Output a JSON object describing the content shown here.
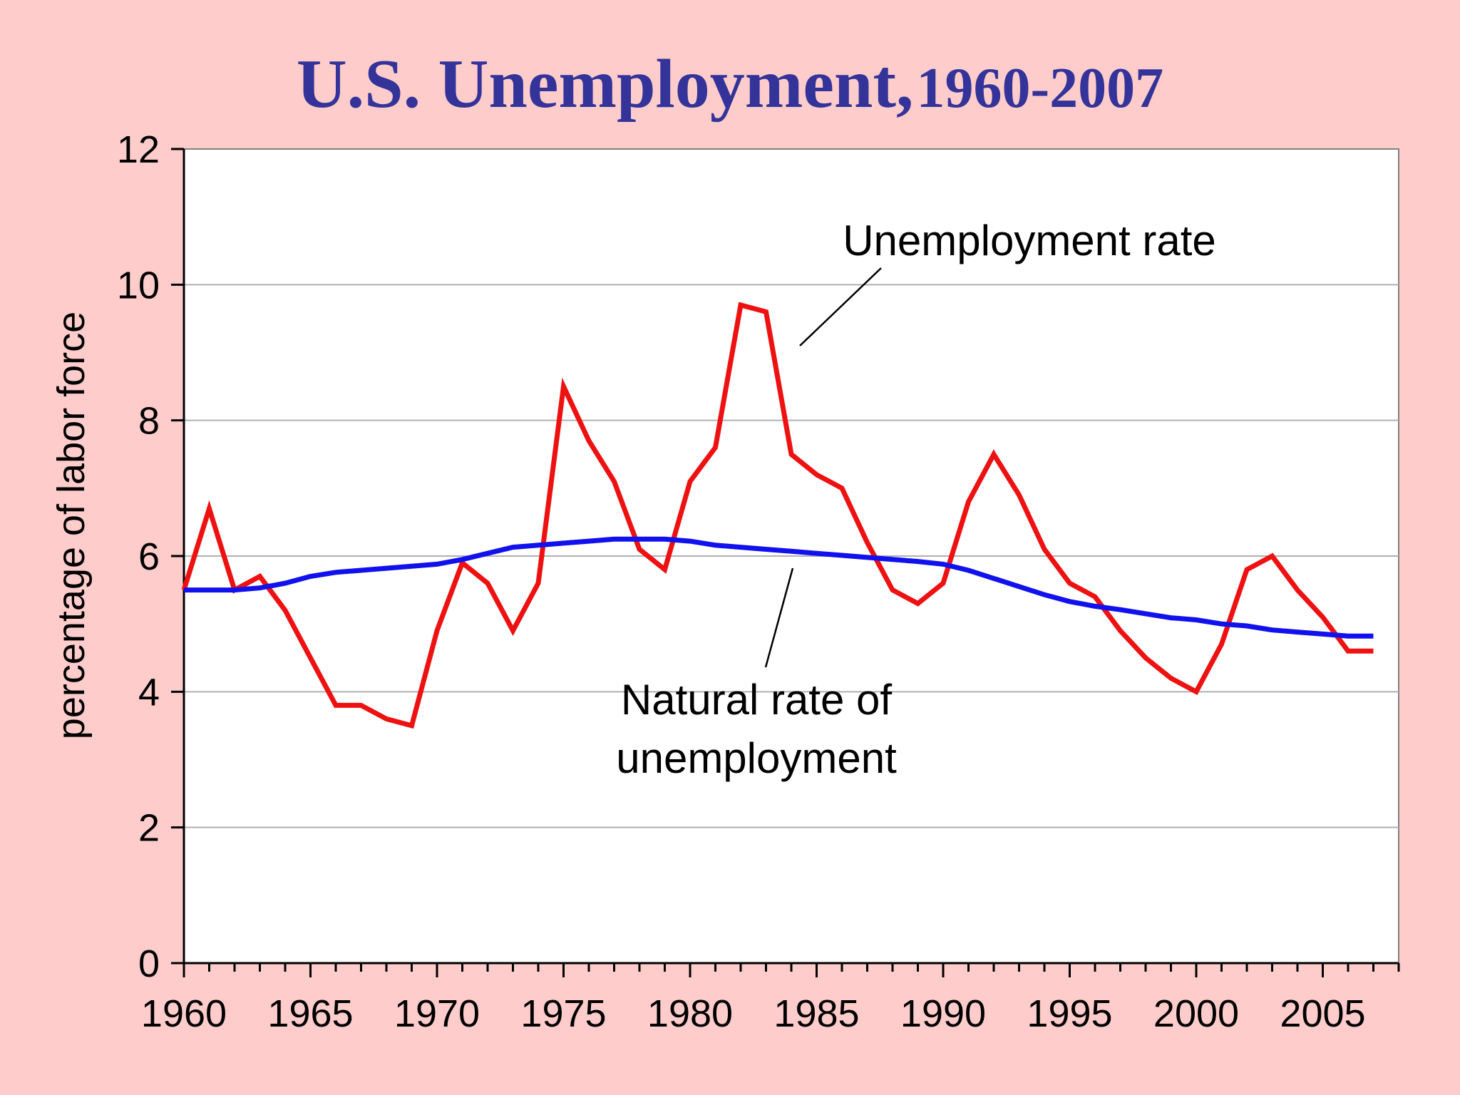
{
  "chart_data": {
    "type": "line",
    "title": "U.S. Unemployment,",
    "title_years": "1960-2007",
    "ylabel": "percentage of labor force",
    "xlabel": "",
    "xlim": [
      1960,
      2008
    ],
    "ylim": [
      0,
      12
    ],
    "x_ticks": [
      1960,
      1965,
      1970,
      1975,
      1980,
      1985,
      1990,
      1995,
      2000,
      2005
    ],
    "y_ticks": [
      0,
      2,
      4,
      6,
      8,
      10,
      12
    ],
    "grid": true,
    "legend": "none",
    "x": [
      1960,
      1961,
      1962,
      1963,
      1964,
      1965,
      1966,
      1967,
      1968,
      1969,
      1970,
      1971,
      1972,
      1973,
      1974,
      1975,
      1976,
      1977,
      1978,
      1979,
      1980,
      1981,
      1982,
      1983,
      1984,
      1985,
      1986,
      1987,
      1988,
      1989,
      1990,
      1991,
      1992,
      1993,
      1994,
      1995,
      1996,
      1997,
      1998,
      1999,
      2000,
      2001,
      2002,
      2003,
      2004,
      2005,
      2006,
      2007
    ],
    "series": [
      {
        "name": "Unemployment rate",
        "color": "#ee1111",
        "values": [
          5.5,
          6.7,
          5.5,
          5.7,
          5.2,
          4.5,
          3.8,
          3.8,
          3.6,
          3.5,
          4.9,
          5.9,
          5.6,
          4.9,
          5.6,
          8.5,
          7.7,
          7.1,
          6.1,
          5.8,
          7.1,
          7.6,
          9.7,
          9.6,
          7.5,
          7.2,
          7.0,
          6.2,
          5.5,
          5.3,
          5.6,
          6.8,
          7.5,
          6.9,
          6.1,
          5.6,
          5.4,
          4.9,
          4.5,
          4.2,
          4.0,
          4.7,
          5.8,
          6.0,
          5.5,
          5.1,
          4.6,
          4.6
        ]
      },
      {
        "name": "Natural rate of unemployment",
        "color": "#1111ee",
        "values": [
          5.5,
          5.5,
          5.5,
          5.53,
          5.6,
          5.7,
          5.76,
          5.79,
          5.82,
          5.85,
          5.88,
          5.95,
          6.04,
          6.13,
          6.16,
          6.19,
          6.22,
          6.25,
          6.25,
          6.25,
          6.22,
          6.16,
          6.13,
          6.1,
          6.07,
          6.04,
          6.01,
          5.98,
          5.95,
          5.92,
          5.88,
          5.79,
          5.67,
          5.55,
          5.43,
          5.33,
          5.26,
          5.21,
          5.15,
          5.09,
          5.06,
          5.0,
          4.97,
          4.91,
          4.88,
          4.85,
          4.82,
          4.82
        ]
      }
    ],
    "annotations": [
      {
        "lines": [
          "Unemployment rate"
        ]
      },
      {
        "lines": [
          "Natural rate of",
          "unemployment"
        ]
      }
    ]
  }
}
